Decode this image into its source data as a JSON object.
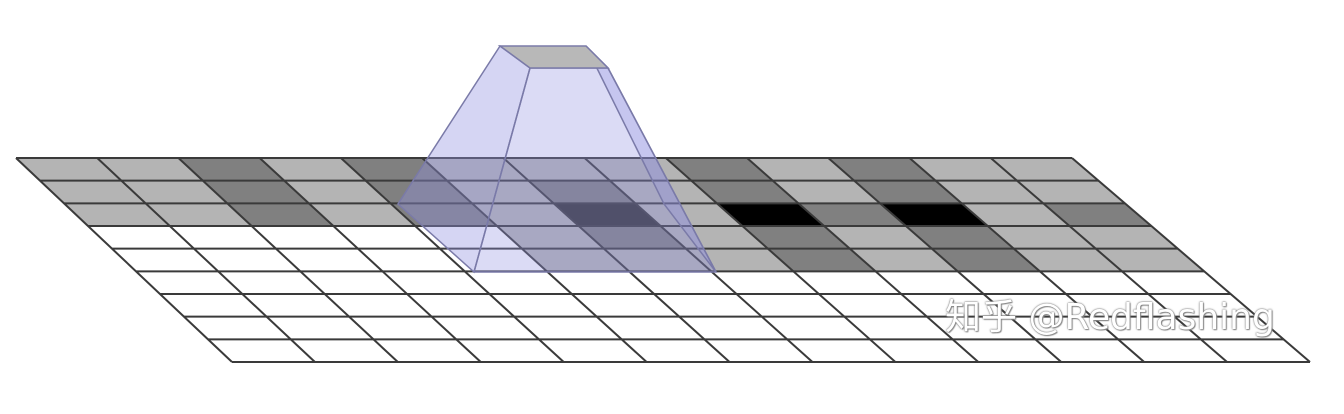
{
  "diagram": {
    "rows": 9,
    "cols": 13,
    "cell_colors": [
      [
        "#b4b4b4",
        "#b4b4b4",
        "#808080",
        "#b4b4b4",
        "#808080",
        "#b4b4b4",
        "#b4b4b4",
        "#b4b4b4",
        "#808080",
        "#b4b4b4",
        "#808080",
        "#b4b4b4",
        "#b4b4b4"
      ],
      [
        "#b4b4b4",
        "#b4b4b4",
        "#808080",
        "#b4b4b4",
        "#808080",
        "#b4b4b4",
        "#808080",
        "#b4b4b4",
        "#808080",
        "#b4b4b4",
        "#808080",
        "#b4b4b4",
        "#b4b4b4"
      ],
      [
        "#b4b4b4",
        "#b4b4b4",
        "#808080",
        "#b4b4b4",
        "#808080",
        "#b4b4b4",
        "#333333",
        "#b4b4b4",
        "#000000",
        "#808080",
        "#000000",
        "#b4b4b4",
        "#808080"
      ],
      [
        "#ffffff",
        "#ffffff",
        "#ffffff",
        "#ffffff",
        "#ffffff",
        "#b4b4b4",
        "#808080",
        "#b4b4b4",
        "#808080",
        "#b4b4b4",
        "#808080",
        "#b4b4b4",
        "#b4b4b4"
      ],
      [
        "#ffffff",
        "#ffffff",
        "#ffffff",
        "#ffffff",
        "#ffffff",
        "#b4b4b4",
        "#b4b4b4",
        "#b4b4b4",
        "#808080",
        "#b4b4b4",
        "#808080",
        "#b4b4b4",
        "#b4b4b4"
      ],
      [
        "#ffffff",
        "#ffffff",
        "#ffffff",
        "#ffffff",
        "#ffffff",
        "#ffffff",
        "#ffffff",
        "#ffffff",
        "#ffffff",
        "#ffffff",
        "#ffffff",
        "#ffffff",
        "#ffffff"
      ],
      [
        "#ffffff",
        "#ffffff",
        "#ffffff",
        "#ffffff",
        "#ffffff",
        "#ffffff",
        "#ffffff",
        "#ffffff",
        "#ffffff",
        "#ffffff",
        "#ffffff",
        "#ffffff",
        "#ffffff"
      ],
      [
        "#ffffff",
        "#ffffff",
        "#ffffff",
        "#ffffff",
        "#ffffff",
        "#ffffff",
        "#ffffff",
        "#ffffff",
        "#ffffff",
        "#ffffff",
        "#ffffff",
        "#ffffff",
        "#ffffff"
      ],
      [
        "#ffffff",
        "#ffffff",
        "#ffffff",
        "#ffffff",
        "#ffffff",
        "#ffffff",
        "#ffffff",
        "#ffffff",
        "#ffffff",
        "#ffffff",
        "#ffffff",
        "#ffffff",
        "#ffffff"
      ]
    ],
    "colors": {
      "grid_line": "#3a3a3a",
      "cone_fill": "#9090e0",
      "cone_edge": "#7a7aa8",
      "cone_top": "#b8b8b8"
    },
    "watermark": "知乎 @Redflashing"
  }
}
